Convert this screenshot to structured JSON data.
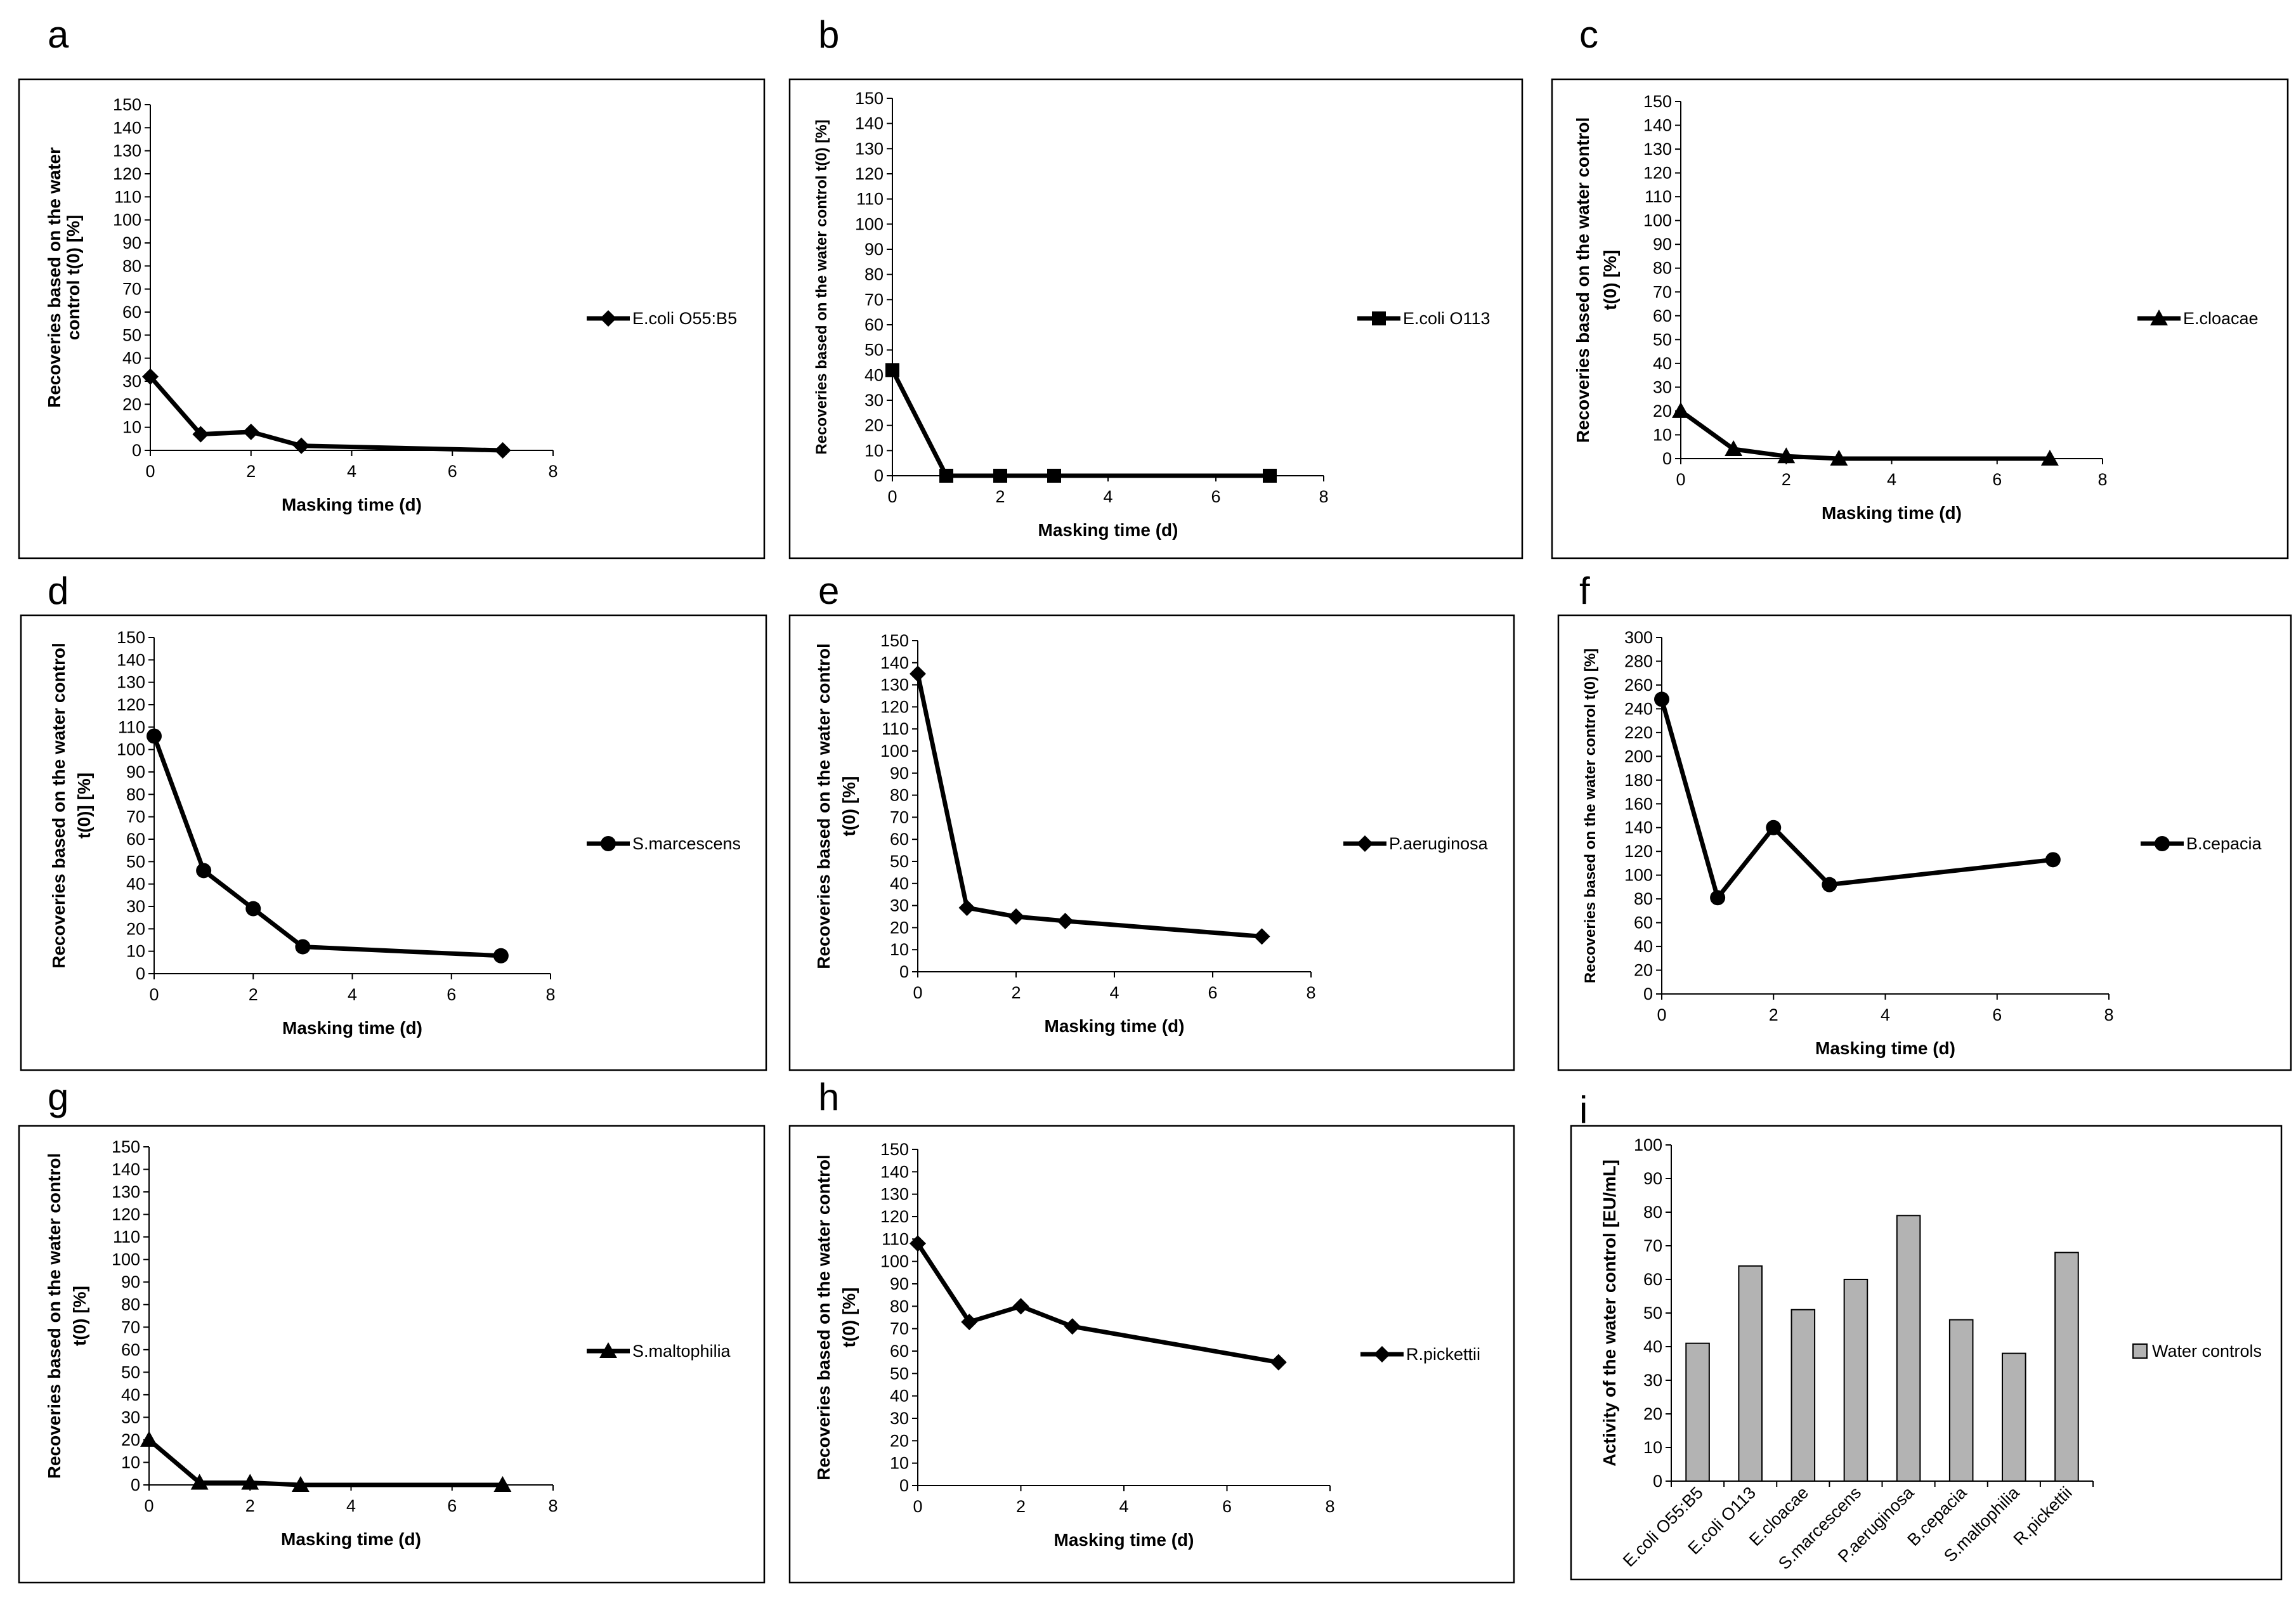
{
  "figure": {
    "panels": [
      "a",
      "b",
      "c",
      "d",
      "e",
      "f",
      "g",
      "h",
      "i"
    ]
  },
  "chart_data": [
    {
      "id": "a",
      "type": "line",
      "letter": "a",
      "xlabel": "Masking time (d)",
      "ylabel": [
        "Recoveries based on the water",
        "control t(0) [%]"
      ],
      "xlim": [
        0,
        8
      ],
      "xticks": [
        0,
        2,
        4,
        6,
        8
      ],
      "ylim": [
        0,
        150
      ],
      "ystep": 10,
      "marker": "diamond",
      "series": [
        {
          "name": "E.coli O55:B5",
          "x": [
            0,
            1,
            2,
            3,
            7
          ],
          "values": [
            32,
            7,
            8,
            2,
            0
          ]
        }
      ]
    },
    {
      "id": "b",
      "type": "line",
      "letter": "b",
      "xlabel": "Masking time (d)",
      "ylabel": [
        "Recoveries based on the water control t(0) [%]"
      ],
      "xlim": [
        0,
        8
      ],
      "xticks": [
        0,
        2,
        4,
        6,
        8
      ],
      "ylim": [
        0,
        150
      ],
      "ystep": 10,
      "marker": "square",
      "series": [
        {
          "name": "E.coli O113",
          "x": [
            0,
            1,
            2,
            3,
            7
          ],
          "values": [
            42,
            0,
            0,
            0,
            0
          ]
        }
      ]
    },
    {
      "id": "c",
      "type": "line",
      "letter": "c",
      "xlabel": "Masking time (d)",
      "ylabel": [
        "Recoveries based on the water control",
        "t(0) [%]"
      ],
      "xlim": [
        0,
        8
      ],
      "xticks": [
        0,
        2,
        4,
        6,
        8
      ],
      "ylim": [
        0,
        150
      ],
      "ystep": 10,
      "marker": "triangle",
      "series": [
        {
          "name": "E.cloacae",
          "x": [
            0,
            1,
            2,
            3,
            7
          ],
          "values": [
            20,
            4,
            1,
            0,
            0
          ]
        }
      ]
    },
    {
      "id": "d",
      "type": "line",
      "letter": "d",
      "xlabel": "Masking time (d)",
      "ylabel": [
        "Recoveries based on the water control",
        "t(0)] [%]"
      ],
      "xlim": [
        0,
        8
      ],
      "xticks": [
        0,
        2,
        4,
        6,
        8
      ],
      "ylim": [
        0,
        150
      ],
      "ystep": 10,
      "marker": "circle",
      "series": [
        {
          "name": "S.marcescens",
          "x": [
            0,
            1,
            2,
            3,
            7
          ],
          "values": [
            106,
            46,
            29,
            12,
            8
          ]
        }
      ]
    },
    {
      "id": "e",
      "type": "line",
      "letter": "e",
      "xlabel": "Masking time (d)",
      "ylabel": [
        "Recoveries based on the water control",
        "t(0) [%]"
      ],
      "xlim": [
        0,
        8
      ],
      "xticks": [
        0,
        2,
        4,
        6,
        8
      ],
      "ylim": [
        0,
        150
      ],
      "ystep": 10,
      "marker": "diamond",
      "series": [
        {
          "name": "P.aeruginosa",
          "x": [
            0,
            1,
            2,
            3,
            7
          ],
          "values": [
            135,
            29,
            25,
            23,
            16
          ]
        }
      ]
    },
    {
      "id": "f",
      "type": "line",
      "letter": "f",
      "xlabel": "Masking time (d)",
      "ylabel": [
        "Recoveries based on the water control t(0) [%]"
      ],
      "xlim": [
        0,
        8
      ],
      "xticks": [
        0,
        2,
        4,
        6,
        8
      ],
      "ylim": [
        0,
        300
      ],
      "ystep": 20,
      "marker": "circle",
      "series": [
        {
          "name": "B.cepacia",
          "x": [
            0,
            1,
            2,
            3,
            7
          ],
          "values": [
            248,
            81,
            140,
            92,
            113
          ]
        }
      ]
    },
    {
      "id": "g",
      "type": "line",
      "letter": "g",
      "xlabel": "Masking time (d)",
      "ylabel": [
        "Recoveries based on the water control",
        "t(0) [%]"
      ],
      "xlim": [
        0,
        8
      ],
      "xticks": [
        0,
        2,
        4,
        6,
        8
      ],
      "ylim": [
        0,
        150
      ],
      "ystep": 10,
      "marker": "triangle",
      "series": [
        {
          "name": "S.maltophilia",
          "x": [
            0,
            1,
            2,
            3,
            7
          ],
          "values": [
            20,
            1,
            1,
            0,
            0
          ]
        }
      ]
    },
    {
      "id": "h",
      "type": "line",
      "letter": "h",
      "xlabel": "Masking time (d)",
      "ylabel": [
        "Recoveries based on the water control",
        "t(0) [%]"
      ],
      "xlim": [
        0,
        8
      ],
      "xticks": [
        0,
        2,
        4,
        6,
        8
      ],
      "ylim": [
        0,
        150
      ],
      "ystep": 10,
      "marker": "diamond",
      "series": [
        {
          "name": "R.pickettii",
          "x": [
            0,
            1,
            2,
            3,
            7
          ],
          "values": [
            108,
            73,
            80,
            71,
            55
          ]
        }
      ]
    },
    {
      "id": "i",
      "type": "bar",
      "letter": "i",
      "xlabel": "",
      "ylabel": [
        "Activity of the water control [EU/mL]"
      ],
      "ylim": [
        0,
        100
      ],
      "ystep": 10,
      "categories": [
        "E.coli O55:B5",
        "E.coli O113",
        "E.cloacae",
        "S.marcescens",
        "P.aeruginosa",
        "B.cepacia",
        "S.maltophilia",
        "R.pickettii"
      ],
      "series": [
        {
          "name": "Water controls",
          "values": [
            41,
            64,
            51,
            60,
            79,
            48,
            38,
            68
          ]
        }
      ]
    }
  ]
}
